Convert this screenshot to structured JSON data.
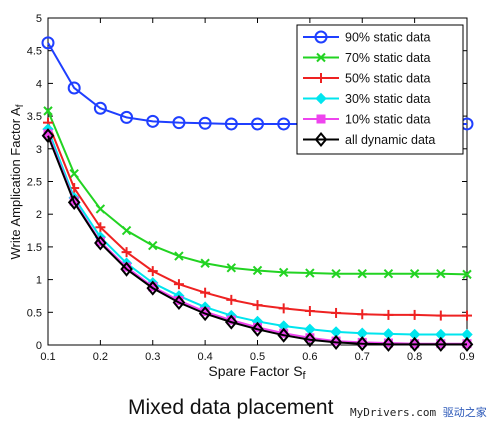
{
  "caption": "Mixed data placement",
  "watermark": {
    "text": "MyDrivers.com",
    "suffix": "驱动之家"
  },
  "chart_data": {
    "type": "line",
    "title": "",
    "xlabel": "Spare Factor S",
    "xlabel_sub": "f",
    "ylabel": "Write Amplication Factor A",
    "ylabel_sub": "f",
    "xlim": [
      0.1,
      0.9
    ],
    "ylim": [
      0,
      5
    ],
    "xticks": [
      0.1,
      0.2,
      0.3,
      0.4,
      0.5,
      0.6,
      0.7,
      0.8,
      0.9
    ],
    "xtick_labels": [
      "0.1",
      "0.2",
      "0.3",
      "0.4",
      "0.5",
      "0.6",
      "0.7",
      "0.8",
      "0.9"
    ],
    "yticks": [
      0,
      0.5,
      1,
      1.5,
      2,
      2.5,
      3,
      3.5,
      4,
      4.5,
      5
    ],
    "ytick_labels": [
      "0",
      "0.5",
      "1",
      "1.5",
      "2",
      "2.5",
      "3",
      "3.5",
      "4",
      "4.5",
      "5"
    ],
    "grid": false,
    "legend_position": "top-right",
    "x": [
      0.1,
      0.15,
      0.2,
      0.25,
      0.3,
      0.35,
      0.4,
      0.45,
      0.5,
      0.55,
      0.6,
      0.65,
      0.7,
      0.75,
      0.8,
      0.85,
      0.9
    ],
    "series": [
      {
        "name": "90% static data",
        "color": "#1f3fff",
        "marker": "circle",
        "marker_every": [
          0,
          1,
          2,
          3,
          4,
          5,
          6,
          7,
          8,
          9,
          16
        ],
        "values": [
          4.62,
          3.93,
          3.62,
          3.48,
          3.42,
          3.4,
          3.39,
          3.38,
          3.38,
          3.38,
          3.38,
          3.38,
          3.38,
          3.38,
          3.38,
          3.38,
          3.38
        ]
      },
      {
        "name": "70% static data",
        "color": "#22d322",
        "marker": "x",
        "values": [
          3.58,
          2.62,
          2.08,
          1.75,
          1.52,
          1.36,
          1.25,
          1.18,
          1.14,
          1.11,
          1.1,
          1.09,
          1.09,
          1.09,
          1.09,
          1.09,
          1.08
        ]
      },
      {
        "name": "50% static data",
        "color": "#ee2222",
        "marker": "plus",
        "values": [
          3.4,
          2.4,
          1.8,
          1.42,
          1.13,
          0.93,
          0.8,
          0.69,
          0.61,
          0.56,
          0.52,
          0.49,
          0.47,
          0.46,
          0.46,
          0.45,
          0.45
        ]
      },
      {
        "name": "30% static data",
        "color": "#00e5ee",
        "marker": "diamond-filled",
        "values": [
          3.3,
          2.25,
          1.65,
          1.25,
          0.95,
          0.75,
          0.58,
          0.45,
          0.36,
          0.29,
          0.24,
          0.2,
          0.18,
          0.17,
          0.16,
          0.16,
          0.16
        ]
      },
      {
        "name": "10% static data",
        "color": "#ee44ee",
        "marker": "square",
        "values": [
          3.23,
          2.2,
          1.58,
          1.19,
          0.89,
          0.68,
          0.51,
          0.38,
          0.27,
          0.18,
          0.11,
          0.06,
          0.04,
          0.03,
          0.02,
          0.02,
          0.02
        ]
      },
      {
        "name": "all dynamic data",
        "color": "#000000",
        "marker": "diamond",
        "values": [
          3.2,
          2.18,
          1.56,
          1.16,
          0.87,
          0.65,
          0.48,
          0.35,
          0.24,
          0.15,
          0.08,
          0.04,
          0.02,
          0.01,
          0.01,
          0.01,
          0.01
        ]
      }
    ]
  }
}
